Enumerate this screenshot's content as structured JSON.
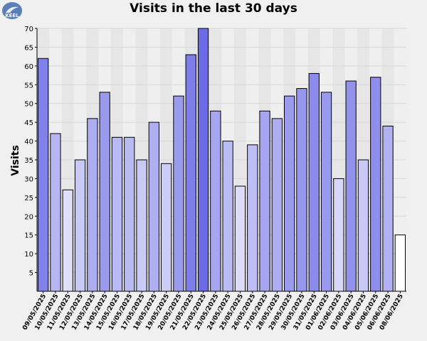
{
  "logo": {
    "text": "KEEL",
    "color": "#5a7fb8"
  },
  "chart_data": {
    "type": "bar",
    "title": "Visits in the last 30 days",
    "xlabel": "",
    "ylabel": "Visits",
    "ylim": [
      0,
      70
    ],
    "yticks": [
      5,
      10,
      15,
      20,
      25,
      30,
      35,
      40,
      45,
      50,
      55,
      60,
      65,
      70
    ],
    "grid": true,
    "categories": [
      "09/05/2025",
      "10/05/2025",
      "11/05/2025",
      "12/05/2025",
      "13/05/2025",
      "14/05/2025",
      "15/05/2025",
      "16/05/2025",
      "17/05/2025",
      "18/05/2025",
      "19/05/2025",
      "20/05/2025",
      "21/05/2025",
      "22/05/2025",
      "23/05/2025",
      "24/05/2025",
      "25/05/2025",
      "26/05/2025",
      "27/05/2025",
      "28/05/2025",
      "29/05/2025",
      "30/05/2025",
      "31/05/2025",
      "01/06/2025",
      "02/06/2025",
      "03/06/2025",
      "04/06/2025",
      "05/06/2025",
      "06/06/2025",
      "08/06/2025"
    ],
    "values": [
      62,
      42,
      27,
      35,
      46,
      53,
      41,
      41,
      35,
      45,
      34,
      52,
      63,
      70,
      48,
      40,
      28,
      39,
      48,
      46,
      52,
      54,
      58,
      53,
      30,
      56,
      35,
      57,
      44,
      15
    ],
    "colors": {
      "bar_max": "#6b6be6",
      "bar_min": "#ffffff",
      "plot_bg": "#e6e6e6",
      "plot_bg_alt": "#efefef"
    }
  }
}
